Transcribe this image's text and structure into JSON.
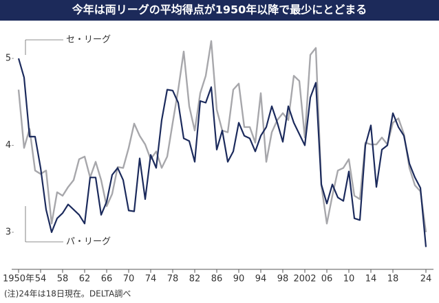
{
  "chart_data": {
    "type": "line",
    "title": "今年は両リーグの平均得点が1950年以降で最少にとどまる",
    "note": "(注)24年は18日現在。DELTA調べ",
    "x": [
      1950,
      1951,
      1952,
      1953,
      1954,
      1955,
      1956,
      1957,
      1958,
      1959,
      1960,
      1961,
      1962,
      1963,
      1964,
      1965,
      1966,
      1967,
      1968,
      1969,
      1970,
      1971,
      1972,
      1973,
      1974,
      1975,
      1976,
      1977,
      1978,
      1979,
      1980,
      1981,
      1982,
      1983,
      1984,
      1985,
      1986,
      1987,
      1988,
      1989,
      1990,
      1991,
      1992,
      1993,
      1994,
      1995,
      1996,
      1997,
      1998,
      1999,
      2000,
      2001,
      2002,
      2003,
      2004,
      2005,
      2006,
      2007,
      2008,
      2009,
      2010,
      2011,
      2012,
      2013,
      2014,
      2015,
      2016,
      2017,
      2018,
      2019,
      2020,
      2021,
      2022,
      2023,
      2024
    ],
    "series": [
      {
        "name": "セ・リーグ",
        "color": "#a7a7ab",
        "values": [
          4.64,
          3.97,
          4.19,
          3.71,
          3.67,
          3.71,
          3.1,
          3.46,
          3.42,
          3.52,
          3.6,
          3.84,
          3.87,
          3.63,
          3.81,
          3.6,
          3.3,
          3.44,
          3.75,
          3.74,
          3.97,
          4.25,
          4.11,
          4.01,
          3.84,
          3.93,
          3.74,
          3.87,
          4.26,
          4.64,
          5.08,
          4.45,
          4.17,
          4.6,
          4.8,
          5.2,
          4.41,
          4.17,
          4.15,
          4.64,
          4.71,
          4.21,
          4.21,
          4.03,
          4.6,
          3.81,
          4.15,
          4.29,
          4.37,
          4.29,
          4.8,
          4.74,
          4.09,
          5.04,
          5.12,
          3.54,
          3.1,
          3.42,
          3.71,
          3.74,
          3.84,
          3.42,
          3.38,
          4.03,
          4.01,
          4.01,
          4.09,
          4.01,
          4.26,
          4.31,
          4.13,
          3.74,
          3.54,
          3.47,
          3.0
        ]
      },
      {
        "name": "パ・リーグ",
        "color": "#1b2a5c",
        "values": [
          5.0,
          4.78,
          4.1,
          4.1,
          3.74,
          3.26,
          3.0,
          3.16,
          3.22,
          3.32,
          3.26,
          3.2,
          3.1,
          3.63,
          3.63,
          3.2,
          3.35,
          3.66,
          3.74,
          3.6,
          3.25,
          3.24,
          3.85,
          3.38,
          3.89,
          3.74,
          4.29,
          4.64,
          4.63,
          4.49,
          4.08,
          4.05,
          3.81,
          4.51,
          4.49,
          4.67,
          3.95,
          4.17,
          3.81,
          3.93,
          4.26,
          4.11,
          4.08,
          3.93,
          4.11,
          4.21,
          4.45,
          4.26,
          4.04,
          4.45,
          4.26,
          4.13,
          4.0,
          4.55,
          4.72,
          3.55,
          3.33,
          3.55,
          3.4,
          3.36,
          3.7,
          3.16,
          3.14,
          4.0,
          4.23,
          3.52,
          3.95,
          4.0,
          4.37,
          4.21,
          4.11,
          3.79,
          3.63,
          3.51,
          2.83
        ]
      }
    ],
    "xlim": [
      1950,
      2024
    ],
    "xticks": [
      {
        "value": 1950,
        "label": "1950年"
      },
      {
        "value": 1954,
        "label": "54"
      },
      {
        "value": 1958,
        "label": "58"
      },
      {
        "value": 1962,
        "label": "62"
      },
      {
        "value": 1966,
        "label": "66"
      },
      {
        "value": 1970,
        "label": "70"
      },
      {
        "value": 1974,
        "label": "74"
      },
      {
        "value": 1978,
        "label": "78"
      },
      {
        "value": 1982,
        "label": "82"
      },
      {
        "value": 1986,
        "label": "86"
      },
      {
        "value": 1990,
        "label": "90"
      },
      {
        "value": 1994,
        "label": "94"
      },
      {
        "value": 1998,
        "label": "98"
      },
      {
        "value": 2002,
        "label": "2002"
      },
      {
        "value": 2006,
        "label": "06"
      },
      {
        "value": 2010,
        "label": "10"
      },
      {
        "value": 2014,
        "label": "14"
      },
      {
        "value": 2018,
        "label": "18"
      },
      {
        "value": 2024,
        "label": "24"
      }
    ],
    "ylim": [
      2.57,
      5.4
    ],
    "yticks": [
      3,
      4,
      5
    ]
  }
}
